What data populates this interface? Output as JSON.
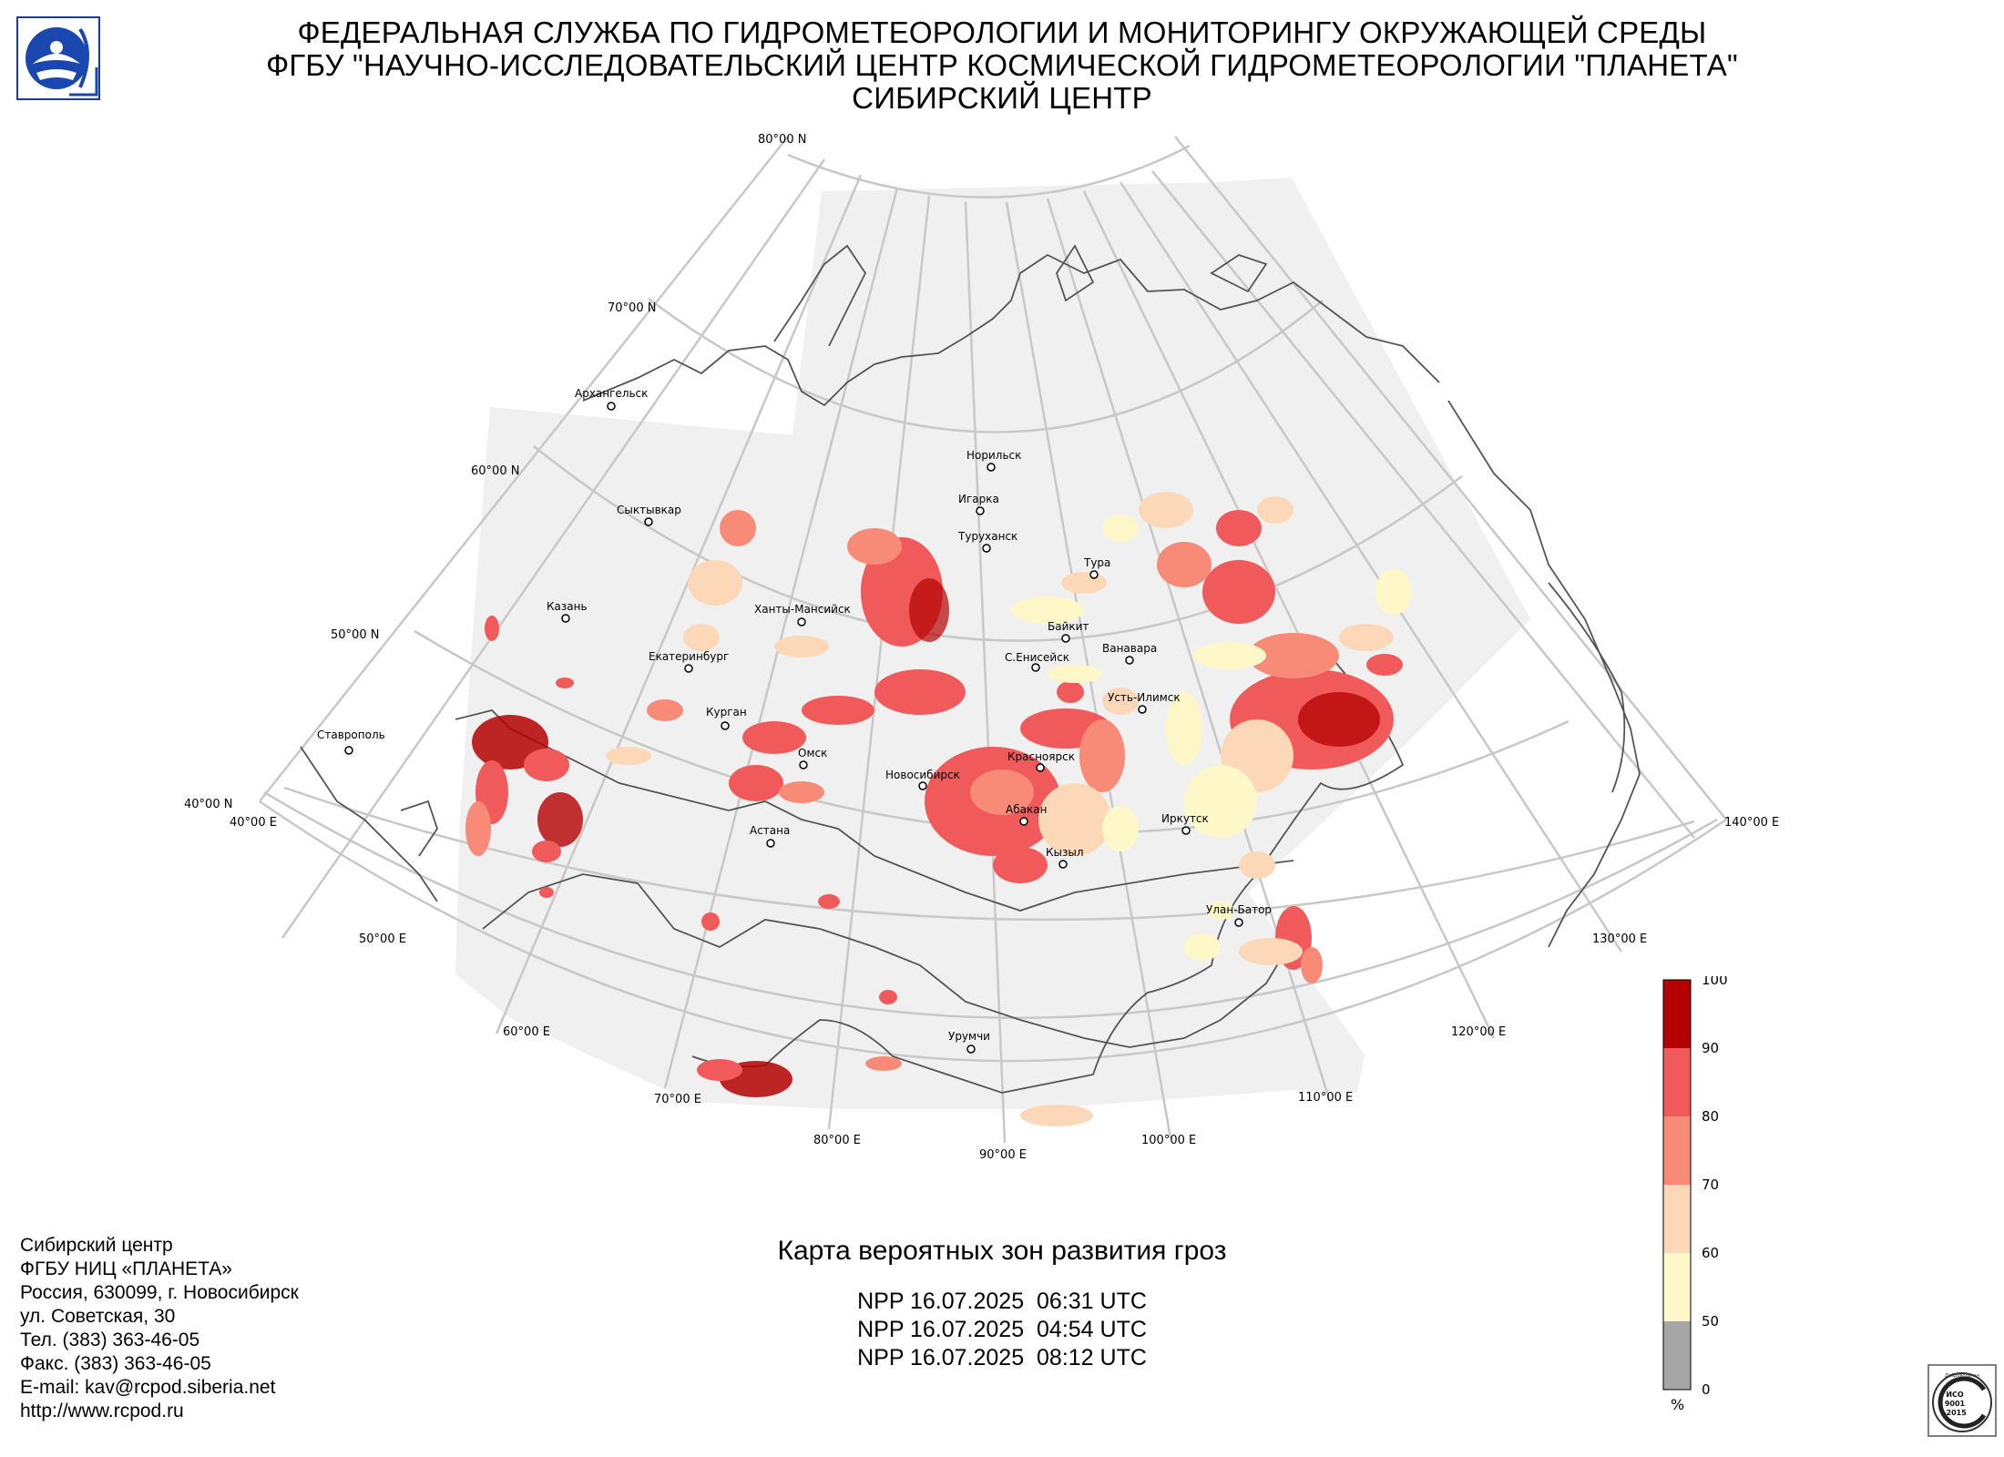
{
  "header": {
    "line1": "ФЕДЕРАЛЬНАЯ СЛУЖБА ПО ГИДРОМЕТЕОРОЛОГИИ И МОНИТОРИНГУ ОКРУЖАЮЩЕЙ СРЕДЫ",
    "line2": "ФГБУ \"НАУЧНО-ИССЛЕДОВАТЕЛЬСКИЙ ЦЕНТР КОСМИЧЕСКОЙ ГИДРОМЕТЕОРОЛОГИИ \"ПЛАНЕТА\"",
    "line3": "СИБИРСКИЙ ЦЕНТР"
  },
  "map": {
    "lat_labels": [
      "80°00 N",
      "70°00 N",
      "60°00 N",
      "50°00 N",
      "40°00 N"
    ],
    "lon_labels": [
      "40°00 E",
      "50°00 E",
      "60°00 E",
      "70°00 E",
      "80°00 E",
      "90°00 E",
      "100°00 E",
      "110°00 E",
      "120°00 E",
      "130°00 E",
      "140°00 E"
    ],
    "cities": [
      "Архангельск",
      "Норильск",
      "Игарка",
      "Сыктывкар",
      "Туруханск",
      "Тура",
      "Казань",
      "Ханты-Мансийск",
      "Байкит",
      "Ванавара",
      "Екатеринбург",
      "С.Енисейск",
      "Усть-Илимск",
      "Курган",
      "Ставрополь",
      "Омск",
      "Красноярск",
      "Новосибирск",
      "Абакан",
      "Иркутск",
      "Астана",
      "Кызыл",
      "Улан-Батор",
      "Урумчи"
    ],
    "colors": {
      "coverage": "#f0f0f0",
      "grid": "#c8c8c8",
      "coast": "#555555"
    }
  },
  "legend": {
    "unit": "%",
    "ticks": [
      "100",
      "90",
      "80",
      "70",
      "60",
      "50",
      "0"
    ],
    "bins": [
      {
        "from": 90,
        "to": 100,
        "color": "#b40000"
      },
      {
        "from": 80,
        "to": 90,
        "color": "#f05a5a"
      },
      {
        "from": 70,
        "to": 80,
        "color": "#f88a78"
      },
      {
        "from": 60,
        "to": 70,
        "color": "#fdd8b8"
      },
      {
        "from": 50,
        "to": 60,
        "color": "#fef7c8"
      },
      {
        "from": 0,
        "to": 50,
        "color": "#a6a6a6"
      }
    ]
  },
  "contacts": {
    "line1": "Сибирский центр",
    "line2": "ФГБУ НИЦ «ПЛАНЕТА»",
    "line3": "Россия, 630099, г. Новосибирск",
    "line4": "ул. Советская, 30",
    "line5": "Тел. (383) 363-46-05",
    "line6": "Факс. (383) 363-46-05",
    "line7": "E-mail: kav@rcpod.siberia.net",
    "line8": "http://www.rcpod.ru"
  },
  "caption": "Карта вероятных зон развития гроз",
  "passes": [
    "NPP 16.07.2025  06:31 UTC",
    "NPP 16.07.2025  04:54 UTC",
    "NPP 16.07.2025  08:12 UTC"
  ],
  "iso": {
    "top": "Добровольная",
    "mid1": "ИСО",
    "mid2": "9001",
    "mid3": "-2015"
  }
}
